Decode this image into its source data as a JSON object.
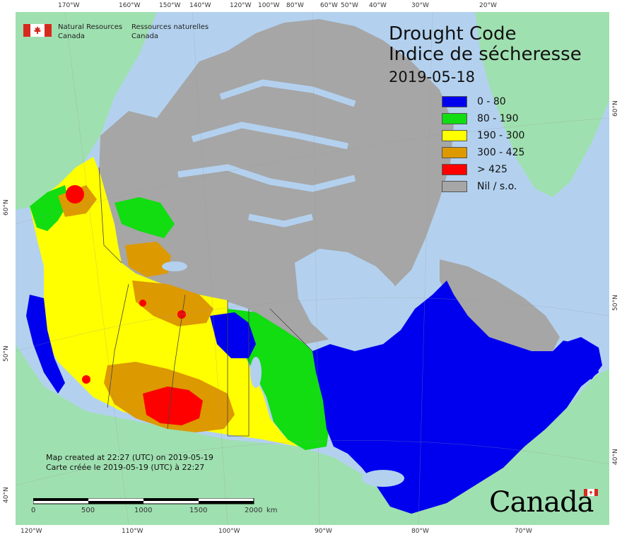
{
  "org": {
    "en_line1": "Natural Resources",
    "en_line2": "Canada",
    "fr_line1": "Ressources naturelles",
    "fr_line2": "Canada"
  },
  "title": {
    "en": "Drought Code",
    "fr": "Indice de sécheresse",
    "date": "2019-05-18"
  },
  "legend": [
    {
      "label": "0 - 80",
      "color": "#0000ee"
    },
    {
      "label": "80 - 190",
      "color": "#11dd11"
    },
    {
      "label": "190 - 300",
      "color": "#ffff00"
    },
    {
      "label": "300 - 425",
      "color": "#dd9900"
    },
    {
      "label": "> 425",
      "color": "#ff0000"
    },
    {
      "label": "Nil / s.o.",
      "color": "#a6a6a6"
    }
  ],
  "colors": {
    "ocean": "#b3d1ef",
    "foreign_land": "#9fe0b0",
    "no_data": "#a6a6a6"
  },
  "credit": {
    "en": "Map created at 22:27 (UTC) on 2019-05-19",
    "fr": "Carte créée le 2019-05-19 (UTC) à 22:27"
  },
  "scale": {
    "ticks": [
      "0",
      "500",
      "1000",
      "1500",
      "2000"
    ],
    "unit": "km"
  },
  "graticule": {
    "top": [
      "170°W",
      "160°W",
      "150°W",
      "140°W",
      "120°W",
      "100°W",
      "80°W",
      "60°W",
      "50°W",
      "40°W",
      "30°W",
      "20°W"
    ],
    "bottom": [
      "120°W",
      "110°W",
      "100°W",
      "90°W",
      "80°W",
      "70°W"
    ],
    "left": [
      "60°N",
      "50°N",
      "40°N"
    ],
    "right": [
      "60°N",
      "50°N",
      "40°N"
    ]
  },
  "wordmark": "Canada"
}
